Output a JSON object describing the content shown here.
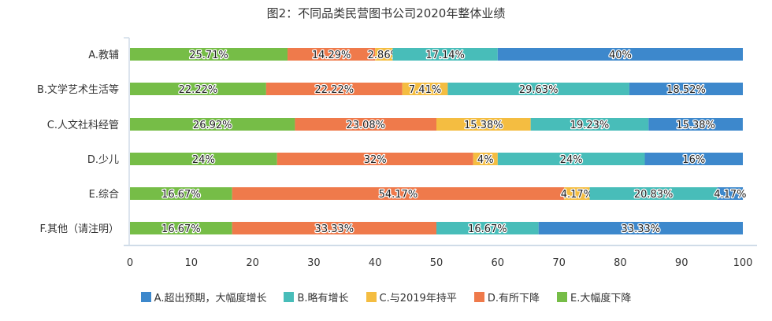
{
  "chart_data": {
    "type": "bar",
    "orientation": "horizontal",
    "stacked": true,
    "title": "图2：不同品类民营图书公司2020年整体业绩",
    "categories": [
      "A.教辅",
      "B.文学艺术生活等",
      "C.人文社科经管",
      "D.少儿",
      "E.综合",
      "F.其他（请注明）"
    ],
    "series": [
      {
        "name": "E.大幅度下降",
        "color": "#76bd47",
        "values": [
          25.71,
          22.22,
          26.92,
          24,
          16.67,
          16.67
        ],
        "labels": [
          "25.71%",
          "22.22%",
          "26.92%",
          "24%",
          "16.67%",
          "16.67%"
        ]
      },
      {
        "name": "D.有所下降",
        "color": "#ef7a4b",
        "values": [
          14.29,
          22.22,
          23.08,
          32,
          54.17,
          33.33
        ],
        "labels": [
          "14.29%",
          "22.22%",
          "23.08%",
          "32%",
          "54.17%",
          "33.33%"
        ]
      },
      {
        "name": "C.与2019年持平",
        "color": "#f4bd41",
        "values": [
          2.86,
          7.41,
          15.38,
          4,
          4.17,
          0
        ],
        "labels": [
          "2.86%",
          "7.41%",
          "15.38%",
          "4%",
          "4.17%",
          ""
        ]
      },
      {
        "name": "B.略有增长",
        "color": "#48bdb9",
        "values": [
          17.14,
          29.63,
          19.23,
          24,
          20.83,
          16.67
        ],
        "labels": [
          "17.14%",
          "29.63%",
          "19.23%",
          "24%",
          "20.83%",
          "16.67%"
        ]
      },
      {
        "name": "A.超出预期，大幅度增长",
        "color": "#3d88cc",
        "values": [
          40,
          18.52,
          15.38,
          16,
          4.17,
          33.33
        ],
        "labels": [
          "40%",
          "18.52%",
          "15.38%",
          "16%",
          "4.17%",
          "33.33%"
        ]
      }
    ],
    "legend_order": [
      "A.超出预期，大幅度增长",
      "B.略有增长",
      "C.与2019年持平",
      "D.有所下降",
      "E.大幅度下降"
    ],
    "xticks": [
      "0",
      "10",
      "20",
      "30",
      "40",
      "50",
      "60",
      "70",
      "80",
      "90",
      "100"
    ],
    "xlim": [
      0,
      100
    ],
    "xlabel": "",
    "ylabel": "",
    "legend_position": "bottom",
    "grid": false
  }
}
